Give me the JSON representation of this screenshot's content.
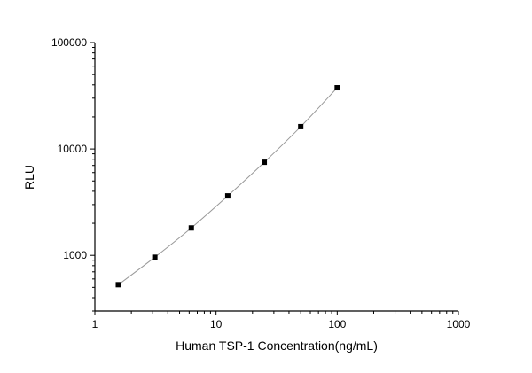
{
  "chart_data": {
    "type": "scatter",
    "title": "",
    "xlabel": "Human TSP-1 Concentration(ng/mL)",
    "ylabel": "RLU",
    "xscale": "log",
    "yscale": "log",
    "xlim": [
      1,
      1000
    ],
    "ylim": [
      300,
      100000
    ],
    "xticks": [
      "1",
      "10",
      "100",
      "1000"
    ],
    "yticks": [
      "1000",
      "10000",
      "100000"
    ],
    "grid": false,
    "legend": "none",
    "fit_line": true,
    "marker": "square",
    "colors": {
      "marker": "#000000",
      "line": "#999999",
      "axis": "#000000"
    },
    "x": [
      1.5625,
      3.125,
      6.25,
      12.5,
      25,
      50,
      100
    ],
    "y": [
      530,
      960,
      1810,
      3620,
      7500,
      16200,
      37600
    ]
  }
}
